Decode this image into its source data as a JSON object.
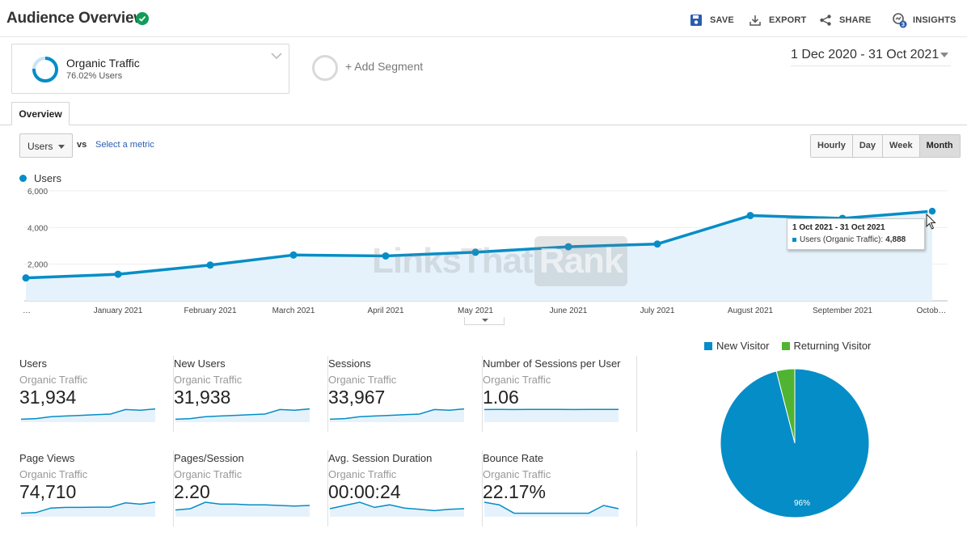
{
  "header": {
    "title": "Audience Overview",
    "save_label": "SAVE",
    "export_label": "EXPORT",
    "share_label": "SHARE",
    "insights_label": "INSIGHTS",
    "insights_badge": "3"
  },
  "segment": {
    "name": "Organic Traffic",
    "subtext": "76.02% Users",
    "add_label": "+ Add Segment"
  },
  "date_range": "1 Dec 2020 - 31 Oct 2021",
  "tabs": [
    {
      "label": "Overview"
    }
  ],
  "metric_selector": {
    "selected": "Users",
    "vs_label": "vs",
    "select_metric_label": "Select a metric"
  },
  "granularity": {
    "options": [
      "Hourly",
      "Day",
      "Week",
      "Month"
    ],
    "active": "Month"
  },
  "colors": {
    "accent": "#058dc7",
    "returning": "#50b432",
    "area": "#e6f2fb"
  },
  "chart_data": {
    "type": "line",
    "legend": "Users",
    "categories": [
      "…",
      "January 2021",
      "February 2021",
      "March 2021",
      "April 2021",
      "May 2021",
      "June 2021",
      "July 2021",
      "August 2021",
      "September 2021",
      "Octob…"
    ],
    "values": [
      1250,
      1450,
      1950,
      2500,
      2450,
      2650,
      2950,
      3100,
      4650,
      4500,
      4888
    ],
    "y_ticks": [
      "6,000",
      "4,000",
      "2,000"
    ],
    "ylim": [
      0,
      6000
    ],
    "tooltip": {
      "title": "1 Oct 2021 - 31 Oct 2021",
      "series_label": "Users (Organic Traffic):",
      "value": "4,888"
    }
  },
  "watermark": {
    "part1": "LinksThat",
    "part2": "Rank"
  },
  "scorecards": [
    {
      "label": "Users",
      "subtitle": "Organic Traffic",
      "value": "31,934",
      "spark": [
        0.1,
        0.15,
        0.3,
        0.35,
        0.4,
        0.45,
        0.5,
        0.85,
        0.8,
        0.9
      ]
    },
    {
      "label": "New Users",
      "subtitle": "Organic Traffic",
      "value": "31,938",
      "spark": [
        0.1,
        0.15,
        0.3,
        0.35,
        0.4,
        0.45,
        0.5,
        0.85,
        0.8,
        0.9
      ]
    },
    {
      "label": "Sessions",
      "subtitle": "Organic Traffic",
      "value": "33,967",
      "spark": [
        0.1,
        0.15,
        0.3,
        0.35,
        0.4,
        0.45,
        0.5,
        0.85,
        0.8,
        0.9
      ]
    },
    {
      "label": "Number of Sessions per User",
      "subtitle": "Organic Traffic",
      "value": "1.06",
      "spark": [
        0.85,
        0.86,
        0.85,
        0.86,
        0.86,
        0.86,
        0.85,
        0.86,
        0.86,
        0.86
      ]
    },
    {
      "label": "Page Views",
      "subtitle": "Organic Traffic",
      "value": "74,710",
      "spark": [
        0.15,
        0.2,
        0.55,
        0.6,
        0.6,
        0.62,
        0.62,
        0.95,
        0.85,
        1.0
      ]
    },
    {
      "label": "Pages/Session",
      "subtitle": "Organic Traffic",
      "value": "2.20",
      "spark": [
        0.4,
        0.5,
        1.0,
        0.85,
        0.85,
        0.8,
        0.8,
        0.75,
        0.7,
        0.75
      ]
    },
    {
      "label": "Avg. Session Duration",
      "subtitle": "Organic Traffic",
      "value": "00:00:24",
      "spark": [
        0.5,
        0.75,
        1.0,
        0.6,
        0.8,
        0.55,
        0.45,
        0.35,
        0.45,
        0.5
      ]
    },
    {
      "label": "Bounce Rate",
      "subtitle": "Organic Traffic",
      "value": "22.17%",
      "spark": [
        1.0,
        0.8,
        0.15,
        0.15,
        0.15,
        0.15,
        0.15,
        0.15,
        0.75,
        0.5
      ]
    }
  ],
  "pie": {
    "legend": [
      {
        "name": "New Visitor",
        "color": "#058dc7"
      },
      {
        "name": "Returning Visitor",
        "color": "#50b432"
      }
    ],
    "values": [
      96,
      4
    ],
    "label": "96%"
  }
}
